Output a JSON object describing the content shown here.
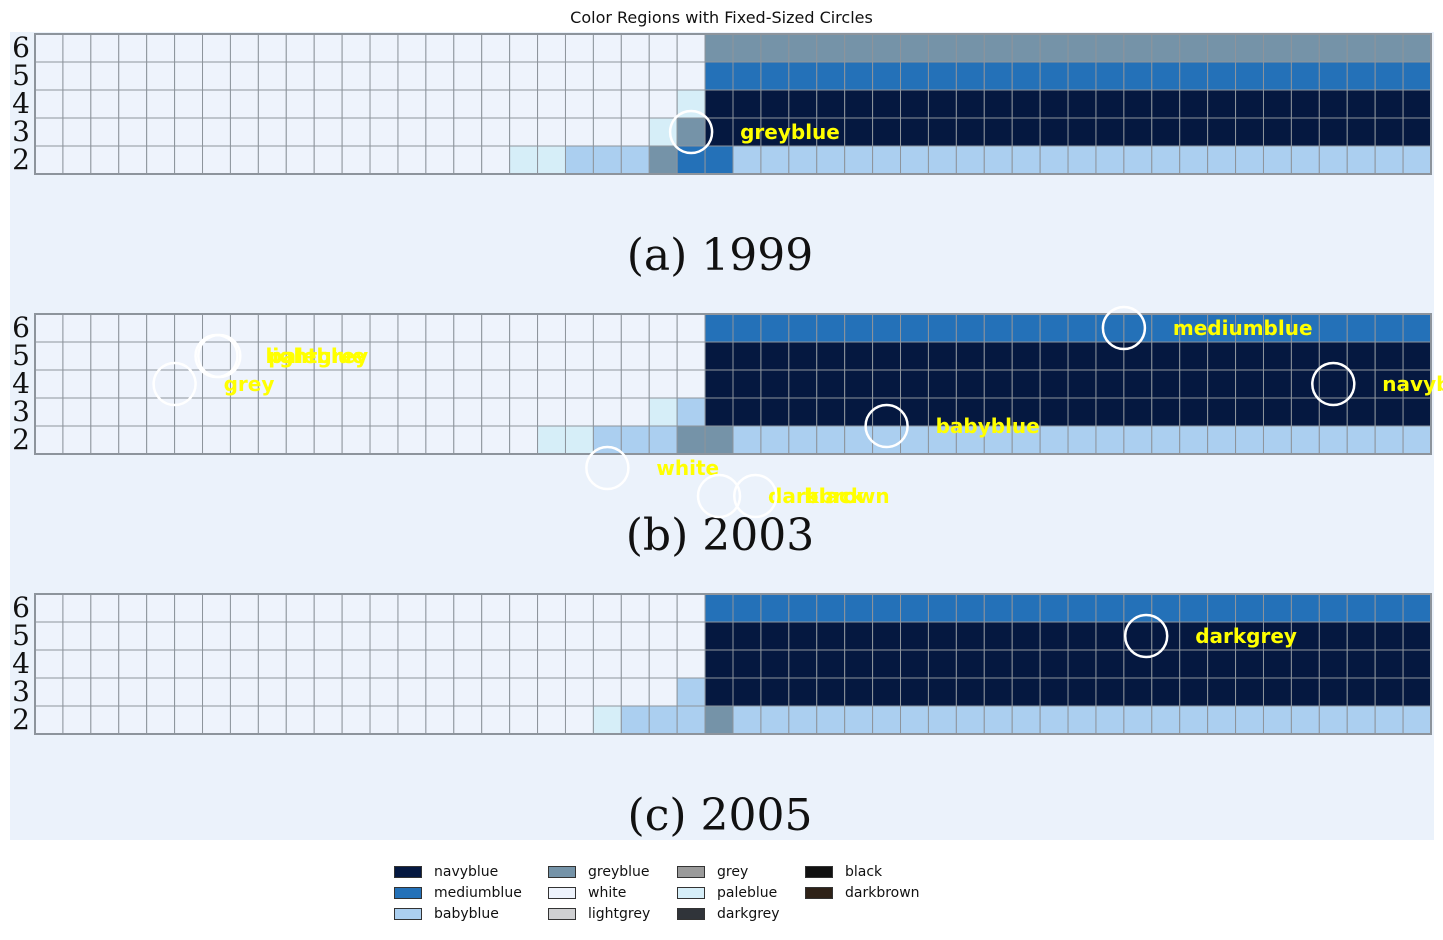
{
  "chart_data": {
    "type": "heatmap",
    "title": "Color Regions with Fixed-Sized Circles",
    "panels": [
      {
        "caption": "(a)  1999",
        "row_labels": [
          "6",
          "5",
          "4",
          "3",
          "2"
        ],
        "columns": 50,
        "rows": {
          "6": [
            "white",
            20,
            "white",
            4,
            "greyblue",
            26
          ],
          "5": [
            "white",
            24,
            "mediumblue",
            26
          ],
          "4": [
            "white",
            23,
            "paleblue",
            1,
            "navyblue",
            26
          ],
          "3": [
            "white",
            22,
            "paleblue",
            1,
            "greyblue",
            1,
            "navyblue",
            26
          ],
          "2": [
            "white",
            17,
            "paleblue",
            2,
            "babyblue",
            3,
            "greyblue",
            1,
            "mediumblue",
            2,
            "babyblue",
            25
          ]
        },
        "annotations": [
          {
            "label": "greyblue",
            "row": 2.5,
            "col": 23.5
          }
        ]
      },
      {
        "caption": "(b)  2003",
        "row_labels": [
          "6",
          "5",
          "4",
          "3",
          "2"
        ],
        "columns": 50,
        "rows": {
          "6": [
            "white",
            24,
            "mediumblue",
            26
          ],
          "5": [
            "white",
            24,
            "navyblue",
            26
          ],
          "4": [
            "white",
            24,
            "navyblue",
            26
          ],
          "3": [
            "white",
            22,
            "paleblue",
            1,
            "babyblue",
            1,
            "navyblue",
            26
          ],
          "2": [
            "white",
            18,
            "paleblue",
            2,
            "babyblue",
            3,
            "greyblue",
            2,
            "babyblue",
            25
          ]
        },
        "annotations": [
          {
            "label": "mediumblue",
            "row": 5.5,
            "col": 39
          },
          {
            "label": "navyblue",
            "row": 3.5,
            "col": 46.5
          },
          {
            "label": "babyblue",
            "row": 2,
            "col": 30.5
          },
          {
            "label": "grey",
            "row": 3.5,
            "col": 5
          },
          {
            "label": "lightgrey",
            "row": 4.5,
            "col": 6.5
          },
          {
            "label": "paleblue",
            "row": 4.5,
            "col": 6.6
          },
          {
            "label": "white",
            "row": 0.5,
            "col": 20.5
          },
          {
            "label": "darkbrown",
            "row": -0.5,
            "col": 24.5
          },
          {
            "label": "black",
            "row": -0.5,
            "col": 25.8
          }
        ]
      },
      {
        "caption": "(c)  2005",
        "row_labels": [
          "6",
          "5",
          "4",
          "3",
          "2"
        ],
        "columns": 50,
        "rows": {
          "6": [
            "white",
            24,
            "mediumblue",
            26
          ],
          "5": [
            "white",
            24,
            "navyblue",
            26
          ],
          "4": [
            "white",
            24,
            "navyblue",
            26
          ],
          "3": [
            "white",
            23,
            "babyblue",
            1,
            "navyblue",
            26
          ],
          "2": [
            "white",
            20,
            "paleblue",
            1,
            "babyblue",
            3,
            "greyblue",
            1,
            "babyblue",
            25
          ]
        },
        "annotations": [
          {
            "label": "darkgrey",
            "row": 4.5,
            "col": 39.8
          }
        ]
      }
    ],
    "legend": [
      {
        "name": "navyblue",
        "color": "#051840"
      },
      {
        "name": "mediumblue",
        "color": "#2471b8"
      },
      {
        "name": "babyblue",
        "color": "#abcff0"
      },
      {
        "name": "greyblue",
        "color": "#7593a8"
      },
      {
        "name": "white",
        "color": "#eef3fc"
      },
      {
        "name": "lightgrey",
        "color": "#cfd0d2"
      },
      {
        "name": "grey",
        "color": "#9a9a9a"
      },
      {
        "name": "paleblue",
        "color": "#d6eef8"
      },
      {
        "name": "darkgrey",
        "color": "#30343a"
      },
      {
        "name": "black",
        "color": "#111111"
      },
      {
        "name": "darkbrown",
        "color": "#2e2218"
      }
    ],
    "colors": {
      "background": "#ebf2fb",
      "annotation_text": "#ffff00",
      "circle": "#ffffff",
      "grid_line": "#8d949c"
    }
  }
}
